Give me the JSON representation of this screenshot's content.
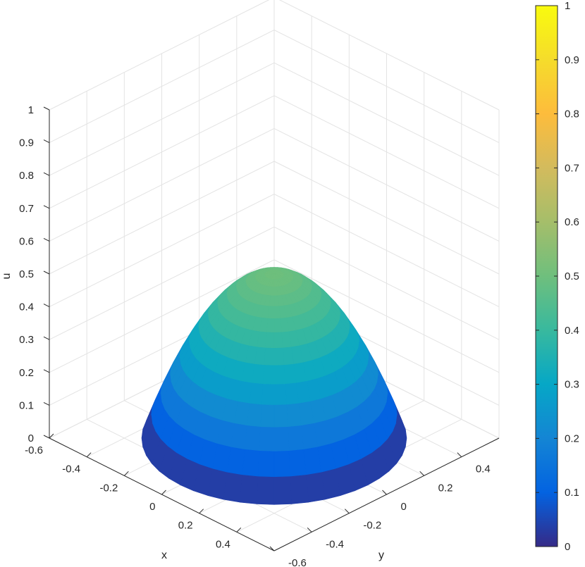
{
  "chart_data": {
    "type": "surface",
    "title": "",
    "xlabel": "x",
    "ylabel": "y",
    "zlabel": "u",
    "xlim": [
      -0.6,
      0.6
    ],
    "ylim": [
      -0.6,
      0.6
    ],
    "zlim": [
      0,
      1
    ],
    "x_ticks": [
      "-0.6",
      "-0.4",
      "-0.2",
      "0",
      "0.2",
      "0.4"
    ],
    "y_ticks": [
      "-0.6",
      "-0.4",
      "-0.2",
      "0",
      "0.2",
      "0.4"
    ],
    "z_ticks": [
      "0",
      "0.1",
      "0.2",
      "0.3",
      "0.4",
      "0.5",
      "0.6",
      "0.7",
      "0.8",
      "0.9",
      "1"
    ],
    "surface": {
      "shape": "paraboloid over disk",
      "domain_radius": 0.5,
      "peak_value": 0.5,
      "edge_value": 0.0,
      "peak_location": [
        0,
        0
      ]
    },
    "colormap": "parula",
    "colorbar": {
      "ticks": [
        "0",
        "0.1",
        "0.2",
        "0.3",
        "0.4",
        "0.5",
        "0.6",
        "0.7",
        "0.8",
        "0.9",
        "1"
      ],
      "range": [
        0,
        1
      ]
    },
    "grid": true
  }
}
